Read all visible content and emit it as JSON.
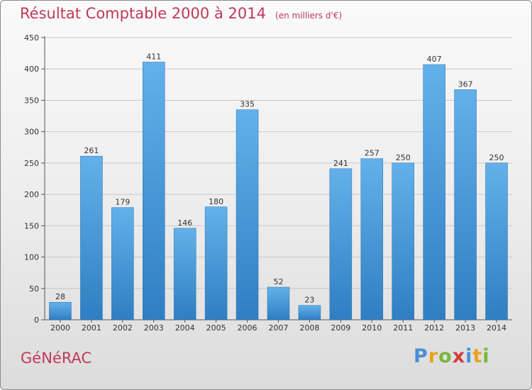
{
  "title": "Résultat Comptable 2000 à 2014",
  "unit_note": "(en milliers d'€)",
  "commune": "GéNéRAC",
  "brand": {
    "letters": [
      "P",
      "r",
      "o",
      "x",
      "i",
      "t",
      "i"
    ],
    "colors": [
      "#4a8fd4",
      "#e8a317",
      "#79b73a",
      "#d23c3c",
      "#4a8fd4",
      "#e8a317",
      "#79b73a"
    ]
  },
  "colors": {
    "bar_top": "#63b1ea",
    "bar_bottom": "#2f7ec2",
    "title": "#c0395a",
    "axis": "#555555",
    "grid": "#c8c8c8"
  },
  "chart_data": {
    "type": "bar",
    "categories": [
      "2000",
      "2001",
      "2002",
      "2003",
      "2004",
      "2005",
      "2006",
      "2007",
      "2008",
      "2009",
      "2010",
      "2011",
      "2012",
      "2013",
      "2014"
    ],
    "values": [
      28,
      261,
      179,
      411,
      146,
      180,
      335,
      52,
      23,
      241,
      257,
      250,
      407,
      367,
      250
    ],
    "ylim": [
      0,
      450
    ],
    "yticks": [
      0,
      50,
      100,
      150,
      200,
      250,
      300,
      350,
      400,
      450
    ],
    "grid": true,
    "data_labels": true
  }
}
